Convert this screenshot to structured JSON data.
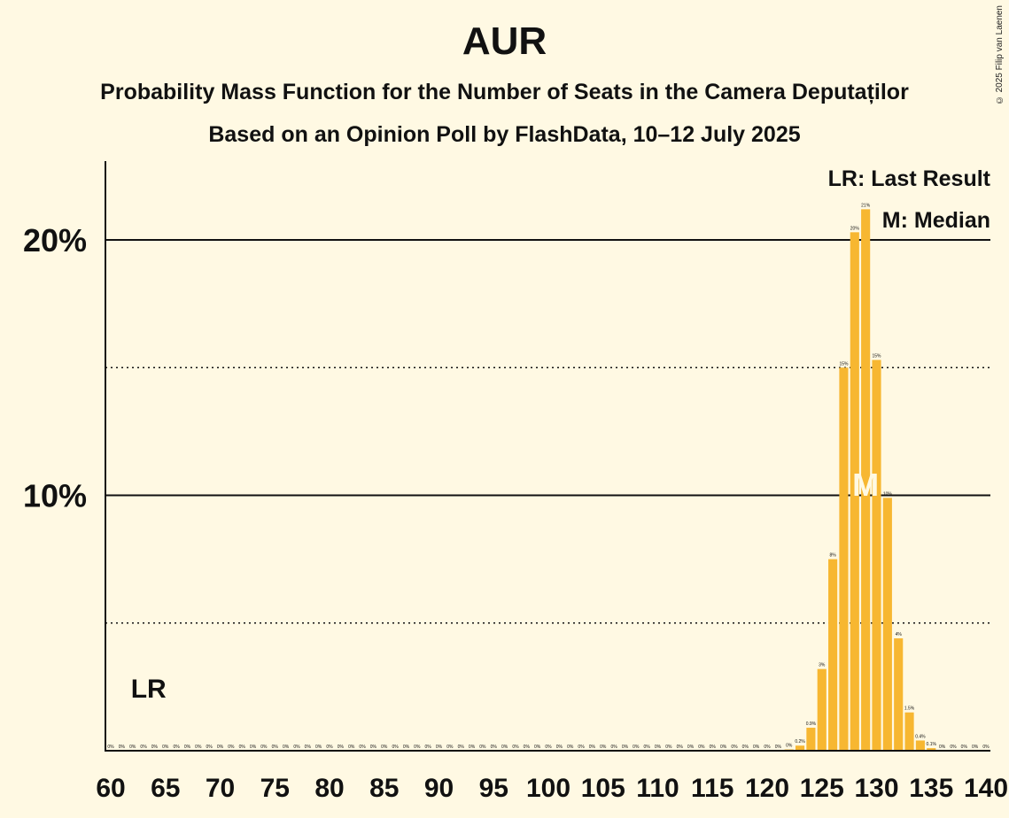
{
  "header": {
    "title": "AUR",
    "subtitle": "Probability Mass Function for the Number of Seats in the Camera Deputaților",
    "source": "Based on an Opinion Poll by FlashData, 10–12 July 2025",
    "copyright": "© 2025 Filip van Laenen"
  },
  "legend": {
    "last_result": "LR: Last Result",
    "median": "M: Median"
  },
  "markers": {
    "last_result_label": "LR",
    "last_result_seat": 62,
    "median_label": "M",
    "median_seat": 129
  },
  "colors": {
    "background": "#fff9e3",
    "bar": "#f7b731",
    "text": "#111111",
    "median_text": "#fff9e3"
  },
  "chart_data": {
    "type": "bar",
    "title": "AUR",
    "xlabel": "",
    "ylabel": "",
    "xlim": [
      60,
      140
    ],
    "ylim": [
      0,
      23
    ],
    "x_ticks": [
      60,
      65,
      70,
      75,
      80,
      85,
      90,
      95,
      100,
      105,
      110,
      115,
      120,
      125,
      130,
      135,
      140
    ],
    "y_ticks_solid": [
      {
        "value": 10,
        "label": "10%"
      },
      {
        "value": 20,
        "label": "20%"
      }
    ],
    "y_gridlines_dotted": [
      5,
      15
    ],
    "bars": [
      {
        "seat": 60,
        "value": 0,
        "label": "0%"
      },
      {
        "seat": 61,
        "value": 0,
        "label": "0%"
      },
      {
        "seat": 62,
        "value": 0,
        "label": "0%"
      },
      {
        "seat": 63,
        "value": 0,
        "label": "0%"
      },
      {
        "seat": 64,
        "value": 0,
        "label": "0%"
      },
      {
        "seat": 65,
        "value": 0,
        "label": "0%"
      },
      {
        "seat": 66,
        "value": 0,
        "label": "0%"
      },
      {
        "seat": 67,
        "value": 0,
        "label": "0%"
      },
      {
        "seat": 68,
        "value": 0,
        "label": "0%"
      },
      {
        "seat": 69,
        "value": 0,
        "label": "0%"
      },
      {
        "seat": 70,
        "value": 0,
        "label": "0%"
      },
      {
        "seat": 71,
        "value": 0,
        "label": "0%"
      },
      {
        "seat": 72,
        "value": 0,
        "label": "0%"
      },
      {
        "seat": 73,
        "value": 0,
        "label": "0%"
      },
      {
        "seat": 74,
        "value": 0,
        "label": "0%"
      },
      {
        "seat": 75,
        "value": 0,
        "label": "0%"
      },
      {
        "seat": 76,
        "value": 0,
        "label": "0%"
      },
      {
        "seat": 77,
        "value": 0,
        "label": "0%"
      },
      {
        "seat": 78,
        "value": 0,
        "label": "0%"
      },
      {
        "seat": 79,
        "value": 0,
        "label": "0%"
      },
      {
        "seat": 80,
        "value": 0,
        "label": "0%"
      },
      {
        "seat": 81,
        "value": 0,
        "label": "0%"
      },
      {
        "seat": 82,
        "value": 0,
        "label": "0%"
      },
      {
        "seat": 83,
        "value": 0,
        "label": "0%"
      },
      {
        "seat": 84,
        "value": 0,
        "label": "0%"
      },
      {
        "seat": 85,
        "value": 0,
        "label": "0%"
      },
      {
        "seat": 86,
        "value": 0,
        "label": "0%"
      },
      {
        "seat": 87,
        "value": 0,
        "label": "0%"
      },
      {
        "seat": 88,
        "value": 0,
        "label": "0%"
      },
      {
        "seat": 89,
        "value": 0,
        "label": "0%"
      },
      {
        "seat": 90,
        "value": 0,
        "label": "0%"
      },
      {
        "seat": 91,
        "value": 0,
        "label": "0%"
      },
      {
        "seat": 92,
        "value": 0,
        "label": "0%"
      },
      {
        "seat": 93,
        "value": 0,
        "label": "0%"
      },
      {
        "seat": 94,
        "value": 0,
        "label": "0%"
      },
      {
        "seat": 95,
        "value": 0,
        "label": "0%"
      },
      {
        "seat": 96,
        "value": 0,
        "label": "0%"
      },
      {
        "seat": 97,
        "value": 0,
        "label": "0%"
      },
      {
        "seat": 98,
        "value": 0,
        "label": "0%"
      },
      {
        "seat": 99,
        "value": 0,
        "label": "0%"
      },
      {
        "seat": 100,
        "value": 0,
        "label": "0%"
      },
      {
        "seat": 101,
        "value": 0,
        "label": "0%"
      },
      {
        "seat": 102,
        "value": 0,
        "label": "0%"
      },
      {
        "seat": 103,
        "value": 0,
        "label": "0%"
      },
      {
        "seat": 104,
        "value": 0,
        "label": "0%"
      },
      {
        "seat": 105,
        "value": 0,
        "label": "0%"
      },
      {
        "seat": 106,
        "value": 0,
        "label": "0%"
      },
      {
        "seat": 107,
        "value": 0,
        "label": "0%"
      },
      {
        "seat": 108,
        "value": 0,
        "label": "0%"
      },
      {
        "seat": 109,
        "value": 0,
        "label": "0%"
      },
      {
        "seat": 110,
        "value": 0,
        "label": "0%"
      },
      {
        "seat": 111,
        "value": 0,
        "label": "0%"
      },
      {
        "seat": 112,
        "value": 0,
        "label": "0%"
      },
      {
        "seat": 113,
        "value": 0,
        "label": "0%"
      },
      {
        "seat": 114,
        "value": 0,
        "label": "0%"
      },
      {
        "seat": 115,
        "value": 0,
        "label": "0%"
      },
      {
        "seat": 116,
        "value": 0,
        "label": "0%"
      },
      {
        "seat": 117,
        "value": 0,
        "label": "0%"
      },
      {
        "seat": 118,
        "value": 0,
        "label": "0%"
      },
      {
        "seat": 119,
        "value": 0,
        "label": "0%"
      },
      {
        "seat": 120,
        "value": 0,
        "label": "0%"
      },
      {
        "seat": 121,
        "value": 0,
        "label": "0%"
      },
      {
        "seat": 122,
        "value": 0.05,
        "label": "0%"
      },
      {
        "seat": 123,
        "value": 0.2,
        "label": "0.2%"
      },
      {
        "seat": 124,
        "value": 0.9,
        "label": "0.9%"
      },
      {
        "seat": 125,
        "value": 3.2,
        "label": "3%"
      },
      {
        "seat": 126,
        "value": 7.5,
        "label": "8%"
      },
      {
        "seat": 127,
        "value": 15.0,
        "label": "15%"
      },
      {
        "seat": 128,
        "value": 20.3,
        "label": "20%"
      },
      {
        "seat": 129,
        "value": 21.2,
        "label": "21%"
      },
      {
        "seat": 130,
        "value": 15.3,
        "label": "15%"
      },
      {
        "seat": 131,
        "value": 9.9,
        "label": "10%"
      },
      {
        "seat": 132,
        "value": 4.4,
        "label": "4%"
      },
      {
        "seat": 133,
        "value": 1.5,
        "label": "1.5%"
      },
      {
        "seat": 134,
        "value": 0.4,
        "label": "0.4%"
      },
      {
        "seat": 135,
        "value": 0.1,
        "label": "0.1%"
      },
      {
        "seat": 136,
        "value": 0,
        "label": "0%"
      },
      {
        "seat": 137,
        "value": 0,
        "label": "0%"
      },
      {
        "seat": 138,
        "value": 0,
        "label": "0%"
      },
      {
        "seat": 139,
        "value": 0,
        "label": "0%"
      },
      {
        "seat": 140,
        "value": 0,
        "label": "0%"
      }
    ]
  }
}
